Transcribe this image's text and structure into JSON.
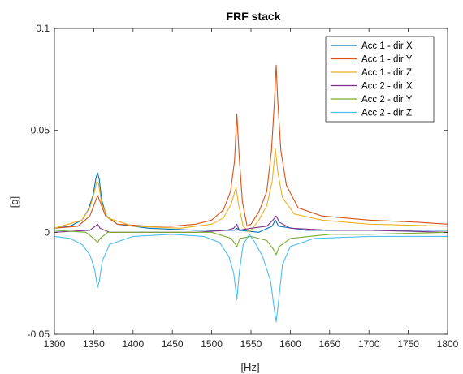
{
  "chart_data": {
    "type": "line",
    "title": "FRF stack",
    "xlabel": "[Hz]",
    "ylabel": "[g]",
    "xlim": [
      1300,
      1800
    ],
    "ylim": [
      -0.05,
      0.1
    ],
    "xticks": [
      1300,
      1350,
      1400,
      1450,
      1500,
      1550,
      1600,
      1650,
      1700,
      1750,
      1800
    ],
    "yticks": [
      -0.05,
      0,
      0.05,
      0.1
    ],
    "ytick_labels": [
      "-0.05",
      "0",
      "0.05",
      "0.1"
    ],
    "grid": false,
    "legend_position": "top-right",
    "series": [
      {
        "name": "Acc 1 - dir X",
        "color": "#0072BD",
        "points": [
          [
            1300,
            0.002
          ],
          [
            1320,
            0.003
          ],
          [
            1335,
            0.006
          ],
          [
            1343,
            0.011
          ],
          [
            1349,
            0.018
          ],
          [
            1353,
            0.027
          ],
          [
            1355,
            0.029
          ],
          [
            1357,
            0.026
          ],
          [
            1360,
            0.016
          ],
          [
            1366,
            0.008
          ],
          [
            1380,
            0.004
          ],
          [
            1420,
            0.002
          ],
          [
            1480,
            0.001
          ],
          [
            1529,
            0.001
          ],
          [
            1532,
            0.002
          ],
          [
            1535,
            0.001
          ],
          [
            1560,
            0.0
          ],
          [
            1577,
            0.003
          ],
          [
            1581,
            0.006
          ],
          [
            1585,
            0.003
          ],
          [
            1620,
            0.001
          ],
          [
            1700,
            0.001
          ],
          [
            1800,
            0.001
          ]
        ]
      },
      {
        "name": "Acc 1 - dir Y",
        "color": "#D95319",
        "points": [
          [
            1300,
            0.002
          ],
          [
            1330,
            0.003
          ],
          [
            1345,
            0.008
          ],
          [
            1352,
            0.015
          ],
          [
            1355,
            0.018
          ],
          [
            1358,
            0.015
          ],
          [
            1365,
            0.008
          ],
          [
            1380,
            0.004
          ],
          [
            1420,
            0.003
          ],
          [
            1450,
            0.003
          ],
          [
            1480,
            0.004
          ],
          [
            1500,
            0.006
          ],
          [
            1515,
            0.011
          ],
          [
            1524,
            0.02
          ],
          [
            1529,
            0.035
          ],
          [
            1532,
            0.058
          ],
          [
            1535,
            0.037
          ],
          [
            1539,
            0.015
          ],
          [
            1545,
            0.003
          ],
          [
            1550,
            0.004
          ],
          [
            1560,
            0.01
          ],
          [
            1570,
            0.02
          ],
          [
            1576,
            0.04
          ],
          [
            1580,
            0.065
          ],
          [
            1582,
            0.082
          ],
          [
            1584,
            0.065
          ],
          [
            1588,
            0.04
          ],
          [
            1595,
            0.023
          ],
          [
            1610,
            0.012
          ],
          [
            1640,
            0.008
          ],
          [
            1700,
            0.006
          ],
          [
            1760,
            0.005
          ],
          [
            1800,
            0.004
          ]
        ]
      },
      {
        "name": "Acc 1 - dir Z",
        "color": "#EDB120",
        "points": [
          [
            1300,
            0.002
          ],
          [
            1335,
            0.006
          ],
          [
            1345,
            0.012
          ],
          [
            1351,
            0.02
          ],
          [
            1354,
            0.025
          ],
          [
            1356,
            0.024
          ],
          [
            1360,
            0.014
          ],
          [
            1368,
            0.007
          ],
          [
            1400,
            0.003
          ],
          [
            1460,
            0.002
          ],
          [
            1500,
            0.004
          ],
          [
            1515,
            0.007
          ],
          [
            1525,
            0.014
          ],
          [
            1531,
            0.022
          ],
          [
            1534,
            0.014
          ],
          [
            1540,
            0.003
          ],
          [
            1548,
            0.0
          ],
          [
            1560,
            0.006
          ],
          [
            1570,
            0.013
          ],
          [
            1577,
            0.025
          ],
          [
            1581,
            0.041
          ],
          [
            1584,
            0.03
          ],
          [
            1590,
            0.017
          ],
          [
            1605,
            0.009
          ],
          [
            1640,
            0.006
          ],
          [
            1700,
            0.004
          ],
          [
            1800,
            0.003
          ]
        ]
      },
      {
        "name": "Acc 2 - dir X",
        "color": "#7E2F8E",
        "points": [
          [
            1300,
            0.0
          ],
          [
            1345,
            0.001
          ],
          [
            1352,
            0.003
          ],
          [
            1355,
            0.004
          ],
          [
            1358,
            0.002
          ],
          [
            1370,
            0.0
          ],
          [
            1430,
            0.0
          ],
          [
            1480,
            0.0
          ],
          [
            1520,
            0.001
          ],
          [
            1528,
            0.002
          ],
          [
            1532,
            0.004
          ],
          [
            1535,
            0.001
          ],
          [
            1550,
            0.002
          ],
          [
            1570,
            0.003
          ],
          [
            1578,
            0.006
          ],
          [
            1582,
            0.008
          ],
          [
            1586,
            0.005
          ],
          [
            1600,
            0.002
          ],
          [
            1650,
            0.001
          ],
          [
            1700,
            0.001
          ],
          [
            1800,
            0.0
          ]
        ]
      },
      {
        "name": "Acc 2 - dir Y",
        "color": "#77AC30",
        "points": [
          [
            1300,
            0.001
          ],
          [
            1340,
            0.0
          ],
          [
            1350,
            -0.003
          ],
          [
            1355,
            -0.005
          ],
          [
            1358,
            -0.003
          ],
          [
            1368,
            0.0
          ],
          [
            1420,
            0.0
          ],
          [
            1500,
            0.0
          ],
          [
            1525,
            -0.003
          ],
          [
            1532,
            -0.007
          ],
          [
            1536,
            -0.003
          ],
          [
            1550,
            -0.002
          ],
          [
            1570,
            -0.004
          ],
          [
            1578,
            -0.008
          ],
          [
            1582,
            -0.011
          ],
          [
            1586,
            -0.007
          ],
          [
            1600,
            -0.003
          ],
          [
            1650,
            -0.001
          ],
          [
            1700,
            -0.001
          ],
          [
            1800,
            0.0
          ]
        ]
      },
      {
        "name": "Acc 2 - dir Z",
        "color": "#4DBEEE",
        "points": [
          [
            1300,
            -0.002
          ],
          [
            1320,
            -0.003
          ],
          [
            1335,
            -0.006
          ],
          [
            1345,
            -0.011
          ],
          [
            1351,
            -0.018
          ],
          [
            1354,
            -0.025
          ],
          [
            1355,
            -0.027
          ],
          [
            1357,
            -0.024
          ],
          [
            1361,
            -0.014
          ],
          [
            1370,
            -0.006
          ],
          [
            1400,
            -0.002
          ],
          [
            1450,
            -0.001
          ],
          [
            1490,
            -0.002
          ],
          [
            1510,
            -0.005
          ],
          [
            1522,
            -0.012
          ],
          [
            1528,
            -0.02
          ],
          [
            1532,
            -0.033
          ],
          [
            1535,
            -0.02
          ],
          [
            1540,
            -0.006
          ],
          [
            1548,
            -0.001
          ],
          [
            1555,
            -0.005
          ],
          [
            1565,
            -0.012
          ],
          [
            1575,
            -0.024
          ],
          [
            1579,
            -0.036
          ],
          [
            1582,
            -0.044
          ],
          [
            1585,
            -0.034
          ],
          [
            1590,
            -0.016
          ],
          [
            1600,
            -0.007
          ],
          [
            1630,
            -0.003
          ],
          [
            1700,
            -0.002
          ],
          [
            1800,
            -0.002
          ]
        ]
      }
    ]
  }
}
